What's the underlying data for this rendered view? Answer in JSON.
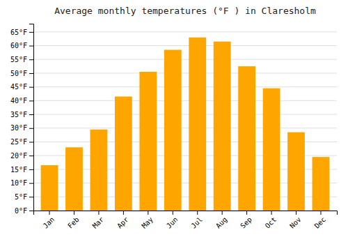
{
  "chart_data": {
    "type": "bar",
    "title": "Average monthly temperatures (°F ) in Claresholm",
    "categories": [
      "Jan",
      "Feb",
      "Mar",
      "Apr",
      "May",
      "Jun",
      "Jul",
      "Aug",
      "Sep",
      "Oct",
      "Nov",
      "Dec"
    ],
    "values": [
      16.5,
      23.0,
      29.5,
      41.5,
      50.5,
      58.5,
      63.0,
      61.5,
      52.5,
      44.5,
      28.5,
      19.5
    ],
    "color": "#FFA500",
    "ylim": [
      0,
      68
    ],
    "yticks": [
      {
        "value": 0,
        "label": "0°F"
      },
      {
        "value": 5,
        "label": "5°F"
      },
      {
        "value": 10,
        "label": "10°F"
      },
      {
        "value": 15,
        "label": "15°F"
      },
      {
        "value": 20,
        "label": "20°F"
      },
      {
        "value": 25,
        "label": "25°F"
      },
      {
        "value": 30,
        "label": "30°F"
      },
      {
        "value": 35,
        "label": "35°F"
      },
      {
        "value": 40,
        "label": "40°F"
      },
      {
        "value": 45,
        "label": "45°F"
      },
      {
        "value": 50,
        "label": "50°F"
      },
      {
        "value": 55,
        "label": "55°F"
      },
      {
        "value": 60,
        "label": "60°F"
      },
      {
        "value": 65,
        "label": "65°F"
      }
    ],
    "grid": true
  }
}
